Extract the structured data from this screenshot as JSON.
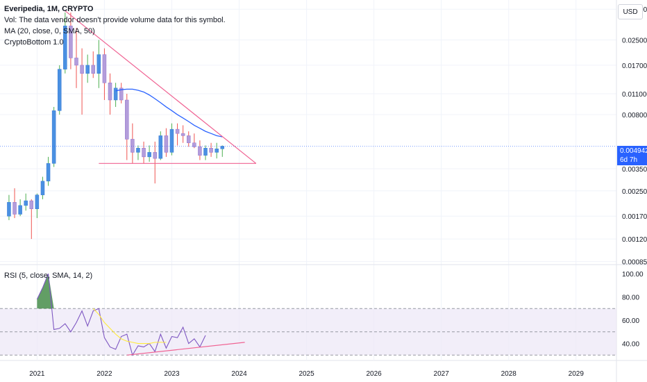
{
  "legend": {
    "symbol": "Everipedia, 1M, CRYPTO",
    "volume_note": "Vol: The data vendor doesn't provide volume data for this symbol.",
    "ma_label": "MA (20, close, 0, SMA, 50)",
    "indicator_label": "CryptoBottom 1.0",
    "rsi_label": "RSI (5, close, SMA, 14, 2)"
  },
  "currency": "USD",
  "last_price": {
    "value": "0.004942",
    "countdown": "6d 7h",
    "color": "#2962ff"
  },
  "colors": {
    "up": "#4a90e2",
    "down": "#b39ddb",
    "wick_up": "#4caf50",
    "wick_down": "#ef5350",
    "ma": "#2962ff",
    "trendline": "#f06292",
    "rsi": "#7e57c2",
    "rsi_ma": "#ffeb3b",
    "rsi_band": "#ede7f6",
    "rsi_fill": "#2e7d32"
  },
  "chart_data": [
    {
      "type": "candlestick",
      "title": "Everipedia, 1M, CRYPTO",
      "x": [
        "2020-08",
        "2020-09",
        "2020-10",
        "2020-11",
        "2020-12",
        "2021-01",
        "2021-02",
        "2021-03",
        "2021-04",
        "2021-05",
        "2021-06",
        "2021-07",
        "2021-08",
        "2021-09",
        "2021-10",
        "2021-11",
        "2021-12",
        "2022-01",
        "2022-02",
        "2022-03",
        "2022-04",
        "2022-05",
        "2022-06",
        "2022-07",
        "2022-08",
        "2022-09",
        "2022-10",
        "2022-11",
        "2022-12",
        "2023-01",
        "2023-02",
        "2023-03",
        "2023-04",
        "2023-05",
        "2023-06",
        "2023-07",
        "2023-08",
        "2023-09",
        "2023-10"
      ],
      "ohlc": [
        [
          0.0017,
          0.00235,
          0.0016,
          0.0021
        ],
        [
          0.0021,
          0.0026,
          0.00165,
          0.00175
        ],
        [
          0.00175,
          0.0022,
          0.0017,
          0.002
        ],
        [
          0.002,
          0.0024,
          0.00185,
          0.00215
        ],
        [
          0.00215,
          0.0022,
          0.0012,
          0.0019
        ],
        [
          0.0019,
          0.0024,
          0.00165,
          0.00235
        ],
        [
          0.00235,
          0.0031,
          0.0022,
          0.0029
        ],
        [
          0.0029,
          0.0042,
          0.0027,
          0.0038
        ],
        [
          0.0038,
          0.009,
          0.0036,
          0.0085
        ],
        [
          0.0085,
          0.017,
          0.008,
          0.016
        ],
        [
          0.016,
          0.038,
          0.015,
          0.031
        ],
        [
          0.031,
          0.038,
          0.016,
          0.019
        ],
        [
          0.019,
          0.03,
          0.012,
          0.017
        ],
        [
          0.017,
          0.022,
          0.008,
          0.015
        ],
        [
          0.015,
          0.02,
          0.013,
          0.017
        ],
        [
          0.017,
          0.021,
          0.014,
          0.015
        ],
        [
          0.015,
          0.025,
          0.012,
          0.02
        ],
        [
          0.02,
          0.022,
          0.01,
          0.013
        ],
        [
          0.013,
          0.015,
          0.008,
          0.01
        ],
        [
          0.01,
          0.013,
          0.009,
          0.012
        ],
        [
          0.012,
          0.013,
          0.0095,
          0.01
        ],
        [
          0.01,
          0.011,
          0.004,
          0.0055
        ],
        [
          0.0055,
          0.007,
          0.0038,
          0.0045
        ],
        [
          0.0045,
          0.005,
          0.004,
          0.0048
        ],
        [
          0.0048,
          0.0053,
          0.0038,
          0.0042
        ],
        [
          0.0042,
          0.005,
          0.0039,
          0.0045
        ],
        [
          0.0045,
          0.0053,
          0.0028,
          0.0041
        ],
        [
          0.0041,
          0.0062,
          0.004,
          0.0058
        ],
        [
          0.0058,
          0.0065,
          0.0042,
          0.0045
        ],
        [
          0.0045,
          0.007,
          0.0043,
          0.0064
        ],
        [
          0.0064,
          0.007,
          0.005,
          0.006
        ],
        [
          0.006,
          0.0068,
          0.0052,
          0.0058
        ],
        [
          0.0058,
          0.0062,
          0.0049,
          0.0052
        ],
        [
          0.0052,
          0.006,
          0.0048,
          0.0049
        ],
        [
          0.0049,
          0.0054,
          0.004,
          0.0043
        ],
        [
          0.0043,
          0.005,
          0.004,
          0.0048
        ],
        [
          0.0048,
          0.0052,
          0.0042,
          0.0045
        ],
        [
          0.0045,
          0.0052,
          0.0041,
          0.00475
        ],
        [
          0.00475,
          0.005,
          0.0042,
          0.004942
        ]
      ],
      "ma": {
        "label": "MA (20, close, 0, SMA, 50)",
        "start_index": 19,
        "values": [
          0.0115,
          0.0117,
          0.0118,
          0.0118,
          0.0116,
          0.0113,
          0.0108,
          0.0102,
          0.0096,
          0.009,
          0.0085,
          0.008,
          0.0076,
          0.0072,
          0.0068,
          0.0065,
          0.0062,
          0.006,
          0.0058,
          0.0057
        ]
      },
      "trendlines": [
        {
          "from": [
            "2021-06",
            0.039
          ],
          "to": [
            "2024-04",
            0.0038
          ]
        },
        {
          "from": [
            "2021-12",
            0.0038
          ],
          "to": [
            "2024-04",
            0.0038
          ]
        }
      ],
      "y_scale": "log",
      "y_ticks": [
        "0.040000",
        "0.025000",
        "0.017000",
        "0.011000",
        "0.008000",
        "0.003500",
        "0.002500",
        "0.001700",
        "0.001200",
        "0.000850"
      ],
      "y_tick_values": [
        0.04,
        0.025,
        0.017,
        0.011,
        0.008,
        0.0035,
        0.0025,
        0.0017,
        0.0012,
        0.00085
      ],
      "ylim": [
        0.00082,
        0.046
      ],
      "x_ticks": [
        "2021",
        "2022",
        "2023",
        "2024",
        "2025",
        "2026",
        "2027",
        "2028",
        "2029"
      ],
      "x_tick_values": [
        2021,
        2022,
        2023,
        2024,
        2025,
        2026,
        2027,
        2028,
        2029
      ],
      "xlim": [
        2020.45,
        2029.6
      ],
      "grid": true
    },
    {
      "type": "line",
      "title": "RSI (5, close, SMA, 14, 2)",
      "series": [
        {
          "name": "RSI",
          "x_start": "2021-01",
          "values": [
            78,
            88,
            100,
            52,
            53,
            57,
            50,
            58,
            68,
            55,
            68,
            70,
            45,
            37,
            35,
            46,
            48,
            30,
            38,
            37,
            40,
            33,
            48,
            36,
            46,
            45,
            54,
            40,
            44,
            37,
            47
          ]
        },
        {
          "name": "RSI MA",
          "x_start": "2021-11",
          "values": [
            70,
            65,
            58,
            53,
            48,
            44,
            42,
            41,
            40,
            40,
            40,
            41,
            41,
            41
          ]
        }
      ],
      "fill_above": 70,
      "bands": [
        70,
        50,
        30
      ],
      "trendline": {
        "from": [
          "2022-05",
          30
        ],
        "to": [
          "2024-02",
          41
        ]
      },
      "y_ticks": [
        "100.00",
        "80.00",
        "60.00",
        "40.00"
      ],
      "y_tick_values": [
        100,
        80,
        60,
        40
      ],
      "ylim": [
        26,
        106
      ],
      "grid": true
    }
  ]
}
